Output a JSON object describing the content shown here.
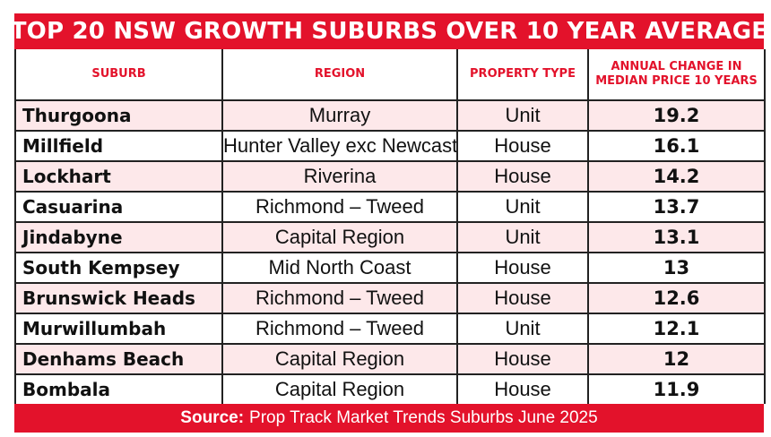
{
  "title": "TOP 20 NSW GROWTH SUBURBS OVER 10 YEAR AVERAGE",
  "headers": {
    "suburb": "SUBURB",
    "region": "REGION",
    "type": "PROPERTY TYPE",
    "change_line1": "ANNUAL CHANGE IN",
    "change_line2": "MEDIAN PRICE 10 YEARS"
  },
  "rows": [
    {
      "suburb": "Thurgoona",
      "region": "Murray",
      "type": "Unit",
      "value": "19.2"
    },
    {
      "suburb": "Millfield",
      "region": "Hunter Valley exc Newcastle",
      "type": "House",
      "value": "16.1"
    },
    {
      "suburb": "Lockhart",
      "region": "Riverina",
      "type": "House",
      "value": "14.2"
    },
    {
      "suburb": "Casuarina",
      "region": "Richmond – Tweed",
      "type": "Unit",
      "value": "13.7"
    },
    {
      "suburb": "Jindabyne",
      "region": "Capital Region",
      "type": "Unit",
      "value": "13.1"
    },
    {
      "suburb": "South Kempsey",
      "region": "Mid North Coast",
      "type": "House",
      "value": "13"
    },
    {
      "suburb": "Brunswick Heads",
      "region": "Richmond – Tweed",
      "type": "House",
      "value": "12.6"
    },
    {
      "suburb": "Murwillumbah",
      "region": "Richmond – Tweed",
      "type": "Unit",
      "value": "12.1"
    },
    {
      "suburb": "Denhams Beach",
      "region": "Capital Region",
      "type": "House",
      "value": "12"
    },
    {
      "suburb": "Bombala",
      "region": "Capital Region",
      "type": "House",
      "value": "11.9"
    }
  ],
  "source": {
    "label": "Source:",
    "text": "Prop Track Market Trends Suburbs June 2025"
  },
  "colors": {
    "accent": "#e3122b",
    "row_tint": "#fde8ea"
  }
}
